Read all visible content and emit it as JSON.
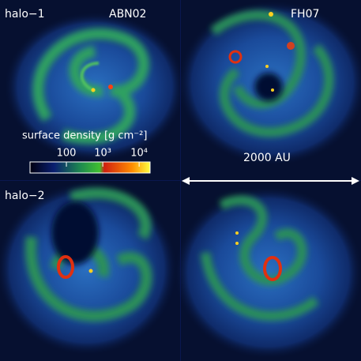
{
  "row_labels": [
    "halo−1",
    "halo−2"
  ],
  "column_labels": [
    "ABN02",
    "FH07"
  ],
  "colorbar": {
    "title": "surface density [g cm⁻²]",
    "scale": "log",
    "lim": [
      10,
      20000
    ],
    "ticks": [
      100,
      {
        "value": 1000,
        "label": "10³"
      },
      {
        "value": 10000,
        "label": "10⁴"
      }
    ]
  },
  "scale_bar": {
    "label": "2000 AU"
  }
}
